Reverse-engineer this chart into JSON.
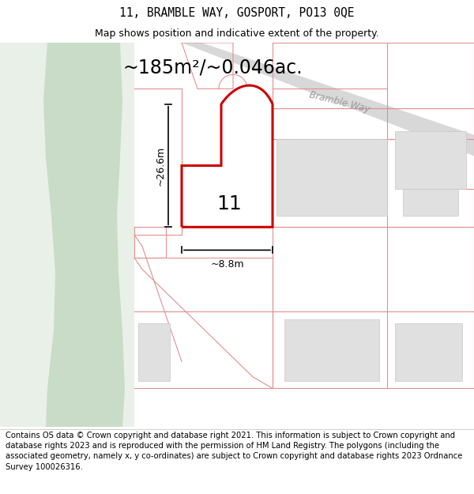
{
  "title": "11, BRAMBLE WAY, GOSPORT, PO13 0QE",
  "subtitle": "Map shows position and indicative extent of the property.",
  "area_text": "~185m²/~0.046ac.",
  "road_label": "Bramble Way",
  "plot_label": "11",
  "dim_width": "~8.8m",
  "dim_height": "~26.6m",
  "footer": "Contains OS data © Crown copyright and database right 2021. This information is subject to Crown copyright and database rights 2023 and is reproduced with the permission of HM Land Registry. The polygons (including the associated geometry, namely x, y co-ordinates) are subject to Crown copyright and database rights 2023 Ordnance Survey 100026316.",
  "bg_map_color": "#f2f4f0",
  "green_dark_color": "#c8dcc8",
  "green_light_color": "#e8f0e8",
  "road_color": "#d8d8d8",
  "plot_outline_color": "#cc0000",
  "other_outline_color": "#e09090",
  "building_fill": "#e0e0e0",
  "white": "#ffffff",
  "title_fontsize": 10.5,
  "subtitle_fontsize": 9,
  "footer_fontsize": 7.2,
  "area_fontsize": 17,
  "road_fontsize": 8.5,
  "label_fontsize": 18,
  "dim_fontsize": 9
}
